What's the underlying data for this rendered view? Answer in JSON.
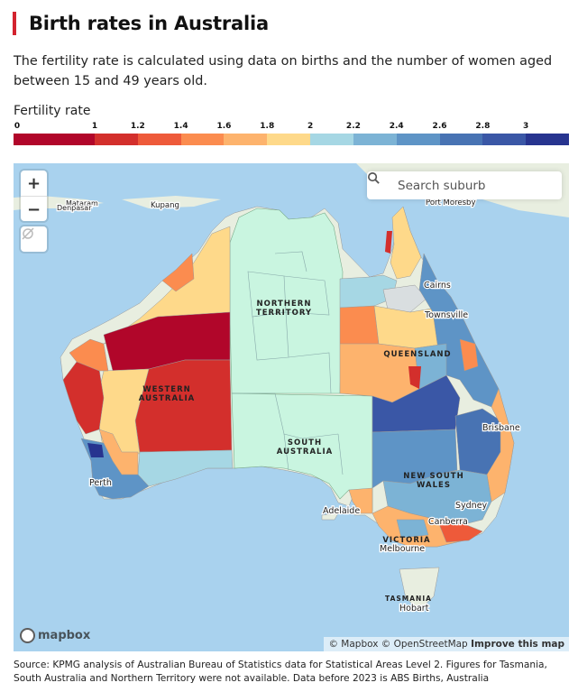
{
  "header": {
    "title": "Birth rates in Australia",
    "intro": "The fertility rate is calculated using data on births and the number of women aged between 15 and 49 years old."
  },
  "legend": {
    "title": "Fertility rate",
    "ticks": [
      "0",
      "1",
      "1.2",
      "1.4",
      "1.6",
      "1.8",
      "2",
      "2.2",
      "2.4",
      "2.6",
      "2.8",
      "3"
    ],
    "colors": [
      "#b1062a",
      "#d32f2c",
      "#ee5a3a",
      "#fb8c4f",
      "#fdb36d",
      "#fed98a",
      "#a6d7e4",
      "#7cb3d5",
      "#5e94c6",
      "#4873b3",
      "#3a57a6",
      "#27348f"
    ]
  },
  "map": {
    "zoom_in": "+",
    "zoom_out": "−",
    "geolocate_icon": "location-off-icon",
    "search_placeholder": "Search suburb",
    "search_icon": "search-icon",
    "state_labels": [
      "NORTHERN",
      "TERRITORY",
      "QUEENSLAND",
      "WESTERN",
      "AUSTRALIA",
      "SOUTH",
      "AUSTRALIA",
      "NEW SOUTH",
      "WALES",
      "VICTORIA",
      "TASMANIA"
    ],
    "city_labels": [
      "Cairns",
      "Townsville",
      "Brisbane",
      "Sydney",
      "Canberra",
      "Melbourne",
      "Hobart",
      "Adelaide",
      "Perth",
      "Port Moresby",
      "Kupang",
      "Mataram",
      "Denpasar"
    ],
    "logo": "mapbox",
    "attribution": [
      "© Mapbox",
      "© OpenStreetMap",
      "Improve this map"
    ],
    "colors": {
      "sea": "#a9d2ee",
      "land": "#e8eee0",
      "nt_sa": "#c9f5e0"
    }
  },
  "source": "Source: KPMG analysis of Australian Bureau of Statistics data for Statistical Areas Level 2. Figures for Tasmania, South Australia and Northern Territory were not available. Data before 2023 is ABS Births, Australia"
}
